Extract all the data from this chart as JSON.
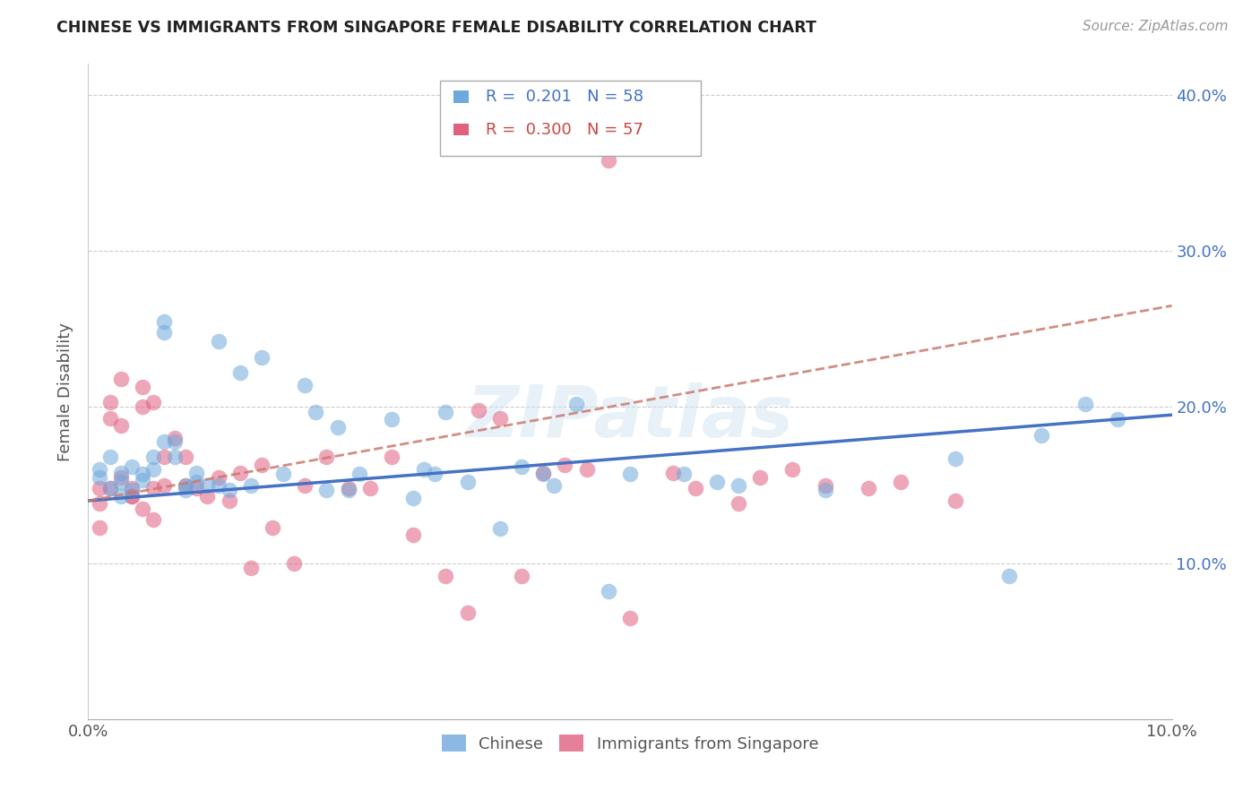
{
  "title": "CHINESE VS IMMIGRANTS FROM SINGAPORE FEMALE DISABILITY CORRELATION CHART",
  "source": "Source: ZipAtlas.com",
  "ylabel": "Female Disability",
  "xlim": [
    0.0,
    0.1
  ],
  "ylim": [
    0.0,
    0.42
  ],
  "yticks": [
    0.1,
    0.2,
    0.3,
    0.4
  ],
  "ytick_labels": [
    "10.0%",
    "20.0%",
    "30.0%",
    "40.0%"
  ],
  "legend_R_chinese": "R =  0.201",
  "legend_N_chinese": "N = 58",
  "legend_R_singapore": "R =  0.300",
  "legend_N_singapore": "N = 57",
  "chinese_color": "#6fa8dc",
  "singapore_color": "#e06080",
  "trend_chinese_color": "#4472c4",
  "trend_singapore_color": "#c9796e",
  "watermark": "ZIPatlas",
  "chinese_scatter_x": [
    0.001,
    0.001,
    0.002,
    0.002,
    0.003,
    0.003,
    0.003,
    0.004,
    0.004,
    0.005,
    0.005,
    0.006,
    0.006,
    0.007,
    0.007,
    0.008,
    0.008,
    0.009,
    0.009,
    0.01,
    0.01,
    0.011,
    0.012,
    0.013,
    0.014,
    0.015,
    0.016,
    0.018,
    0.02,
    0.021,
    0.022,
    0.023,
    0.024,
    0.025,
    0.028,
    0.03,
    0.031,
    0.032,
    0.033,
    0.035,
    0.038,
    0.04,
    0.042,
    0.043,
    0.045,
    0.048,
    0.05,
    0.055,
    0.058,
    0.06,
    0.068,
    0.08,
    0.085,
    0.088,
    0.092,
    0.095,
    0.007,
    0.012
  ],
  "chinese_scatter_y": [
    0.16,
    0.155,
    0.168,
    0.148,
    0.152,
    0.158,
    0.143,
    0.162,
    0.147,
    0.153,
    0.157,
    0.16,
    0.168,
    0.255,
    0.248,
    0.168,
    0.178,
    0.15,
    0.147,
    0.152,
    0.158,
    0.15,
    0.242,
    0.147,
    0.222,
    0.15,
    0.232,
    0.157,
    0.214,
    0.197,
    0.147,
    0.187,
    0.147,
    0.157,
    0.192,
    0.142,
    0.16,
    0.157,
    0.197,
    0.152,
    0.122,
    0.162,
    0.157,
    0.15,
    0.202,
    0.082,
    0.157,
    0.157,
    0.152,
    0.15,
    0.147,
    0.167,
    0.092,
    0.182,
    0.202,
    0.192,
    0.178,
    0.15
  ],
  "singapore_scatter_x": [
    0.001,
    0.001,
    0.001,
    0.002,
    0.002,
    0.003,
    0.003,
    0.004,
    0.004,
    0.005,
    0.005,
    0.006,
    0.006,
    0.007,
    0.007,
    0.008,
    0.009,
    0.009,
    0.01,
    0.011,
    0.012,
    0.013,
    0.014,
    0.015,
    0.016,
    0.017,
    0.019,
    0.02,
    0.022,
    0.024,
    0.026,
    0.028,
    0.03,
    0.033,
    0.035,
    0.036,
    0.038,
    0.04,
    0.042,
    0.044,
    0.046,
    0.048,
    0.05,
    0.054,
    0.056,
    0.06,
    0.062,
    0.065,
    0.068,
    0.072,
    0.075,
    0.08,
    0.002,
    0.003,
    0.004,
    0.005,
    0.006
  ],
  "singapore_scatter_y": [
    0.148,
    0.138,
    0.123,
    0.203,
    0.193,
    0.218,
    0.188,
    0.148,
    0.143,
    0.213,
    0.2,
    0.203,
    0.148,
    0.168,
    0.15,
    0.18,
    0.15,
    0.168,
    0.148,
    0.143,
    0.155,
    0.14,
    0.158,
    0.097,
    0.163,
    0.123,
    0.1,
    0.15,
    0.168,
    0.148,
    0.148,
    0.168,
    0.118,
    0.092,
    0.068,
    0.198,
    0.193,
    0.092,
    0.158,
    0.163,
    0.16,
    0.358,
    0.065,
    0.158,
    0.148,
    0.138,
    0.155,
    0.16,
    0.15,
    0.148,
    0.152,
    0.14,
    0.148,
    0.155,
    0.143,
    0.135,
    0.128
  ]
}
